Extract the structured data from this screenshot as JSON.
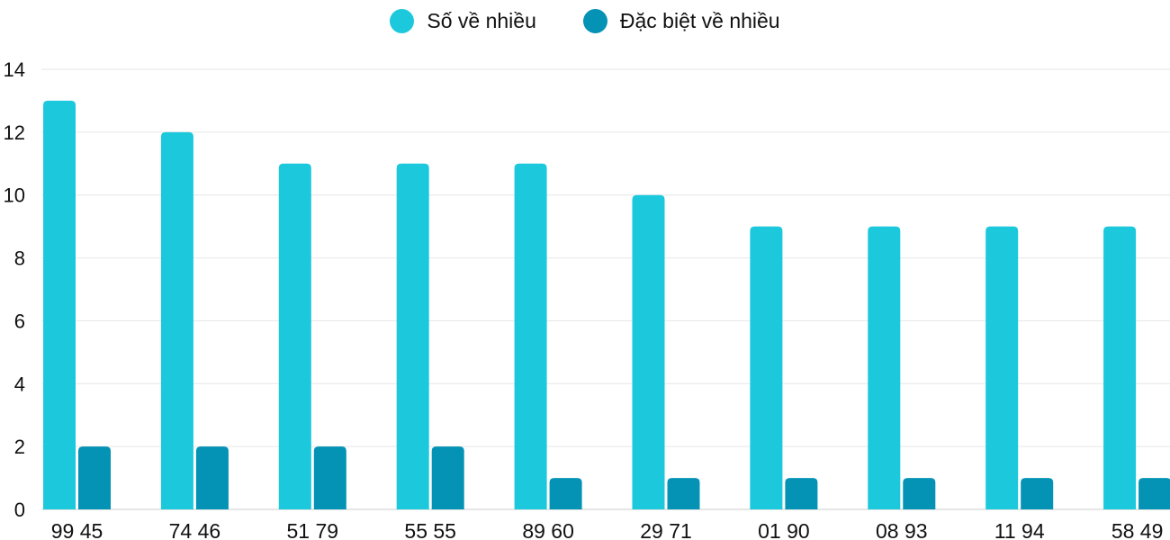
{
  "chart_data": {
    "type": "bar",
    "categories": [
      "99 45",
      "74 46",
      "51 79",
      "55 55",
      "89 60",
      "29 71",
      "01 90",
      "08 93",
      "11 94",
      "58 49"
    ],
    "series": [
      {
        "name": "Số về nhiều",
        "color": "#1bc8dc",
        "values": [
          13,
          12,
          11,
          11,
          11,
          10,
          9,
          9,
          9,
          9
        ]
      },
      {
        "name": "Đặc biệt về nhiều",
        "color": "#0492b5",
        "values": [
          2,
          2,
          2,
          2,
          1,
          1,
          1,
          1,
          1,
          1
        ]
      }
    ],
    "yticks": [
      "0",
      "2",
      "4",
      "6",
      "8",
      "10",
      "12",
      "14"
    ],
    "ylim": [
      0,
      14
    ],
    "grid": true,
    "legend_position": "top"
  }
}
